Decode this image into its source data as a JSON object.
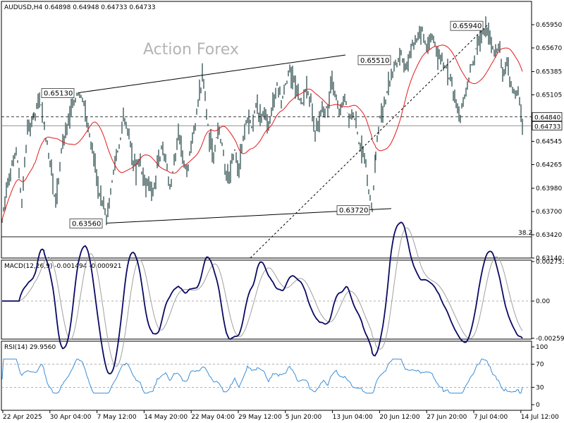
{
  "watermark": "Action Forex",
  "chart_data": [
    {
      "type": "line",
      "role": "price",
      "header": "AUDUSD,H4  0.64898 0.64948 0.64733 0.64733",
      "ylim": [
        0.6314,
        0.6623
      ],
      "y_ticks": [
        "0.65950",
        "0.65670",
        "0.65385",
        "0.65105",
        "0.64825",
        "0.64545",
        "0.64265",
        "0.63980",
        "0.63700",
        "0.63420",
        "0.63140"
      ],
      "x_ticks": [
        "22 Apr 2025",
        "30 Apr 04:00",
        "7 May 12:00",
        "14 May 20:00",
        "22 May 04:00",
        "29 May 12:00",
        "5 Jun 20:00",
        "13 Jun 04:00",
        "20 Jun 12:00",
        "27 Jun 20:00",
        "7 Jul 04:00",
        "14 Jul 12:00"
      ],
      "current_price": "0.64733",
      "reference_price": "0.64840",
      "fib_label": "38.2",
      "fib_level": 0.63395,
      "points": [
        {
          "label": "0.65130",
          "value": 0.6513
        },
        {
          "label": "0.65510",
          "value": 0.6551
        },
        {
          "label": "0.63560",
          "value": 0.6356
        },
        {
          "label": "0.63720",
          "value": 0.6372
        },
        {
          "label": "0.65940",
          "value": 0.6594
        }
      ],
      "trendlines": [
        {
          "name": "upper-channel",
          "from": [
            0.0,
            0.6513
          ],
          "to": [
            0.0,
            0.6551
          ]
        },
        {
          "name": "lower-channel",
          "from": [
            0.0,
            0.6356
          ],
          "to": [
            0.0,
            0.6372
          ]
        }
      ],
      "anchors": [
        [
          0,
          0.636
        ],
        [
          6,
          0.6395
        ],
        [
          12,
          0.642
        ],
        [
          20,
          0.644
        ],
        [
          28,
          0.6385
        ],
        [
          36,
          0.647
        ],
        [
          45,
          0.6485
        ],
        [
          53,
          0.651
        ],
        [
          60,
          0.647
        ],
        [
          68,
          0.643
        ],
        [
          76,
          0.638
        ],
        [
          84,
          0.644
        ],
        [
          92,
          0.647
        ],
        [
          100,
          0.65
        ],
        [
          108,
          0.6515
        ],
        [
          114,
          0.6505
        ],
        [
          120,
          0.648
        ],
        [
          126,
          0.645
        ],
        [
          132,
          0.643
        ],
        [
          138,
          0.639
        ],
        [
          142,
          0.638
        ],
        [
          148,
          0.6356
        ],
        [
          154,
          0.6395
        ],
        [
          160,
          0.643
        ],
        [
          166,
          0.645
        ],
        [
          172,
          0.648
        ],
        [
          178,
          0.647
        ],
        [
          184,
          0.644
        ],
        [
          190,
          0.642
        ],
        [
          196,
          0.643
        ],
        [
          202,
          0.64
        ],
        [
          208,
          0.641
        ],
        [
          214,
          0.639
        ],
        [
          220,
          0.642
        ],
        [
          226,
          0.645
        ],
        [
          232,
          0.643
        ],
        [
          238,
          0.64
        ],
        [
          244,
          0.643
        ],
        [
          250,
          0.646
        ],
        [
          256,
          0.644
        ],
        [
          262,
          0.642
        ],
        [
          268,
          0.645
        ],
        [
          274,
          0.648
        ],
        [
          280,
          0.651
        ],
        [
          284,
          0.653
        ],
        [
          288,
          0.651
        ],
        [
          294,
          0.646
        ],
        [
          300,
          0.644
        ],
        [
          306,
          0.647
        ],
        [
          312,
          0.645
        ],
        [
          318,
          0.641
        ],
        [
          324,
          0.642
        ],
        [
          330,
          0.644
        ],
        [
          336,
          0.642
        ],
        [
          342,
          0.646
        ],
        [
          348,
          0.648
        ],
        [
          354,
          0.647
        ],
        [
          360,
          0.65
        ],
        [
          366,
          0.648
        ],
        [
          372,
          0.649
        ],
        [
          378,
          0.647
        ],
        [
          384,
          0.65
        ],
        [
          390,
          0.652
        ],
        [
          396,
          0.6505
        ],
        [
          402,
          0.6525
        ],
        [
          408,
          0.654
        ],
        [
          414,
          0.653
        ],
        [
          420,
          0.651
        ],
        [
          426,
          0.65
        ],
        [
          432,
          0.652
        ],
        [
          438,
          0.65
        ],
        [
          444,
          0.647
        ],
        [
          450,
          0.648
        ],
        [
          456,
          0.65
        ],
        [
          462,
          0.649
        ],
        [
          468,
          0.653
        ],
        [
          474,
          0.651
        ],
        [
          480,
          0.649
        ],
        [
          486,
          0.651
        ],
        [
          492,
          0.648
        ],
        [
          498,
          0.649
        ],
        [
          504,
          0.646
        ],
        [
          510,
          0.644
        ],
        [
          516,
          0.643
        ],
        [
          520,
          0.639
        ],
        [
          525,
          0.6372
        ],
        [
          530,
          0.644
        ],
        [
          536,
          0.648
        ],
        [
          542,
          0.65
        ],
        [
          548,
          0.652
        ],
        [
          554,
          0.654
        ],
        [
          560,
          0.655
        ],
        [
          566,
          0.656
        ],
        [
          572,
          0.654
        ],
        [
          578,
          0.656
        ],
        [
          584,
          0.657
        ],
        [
          590,
          0.658
        ],
        [
          596,
          0.6585
        ],
        [
          602,
          0.657
        ],
        [
          608,
          0.658
        ],
        [
          614,
          0.657
        ],
        [
          620,
          0.656
        ],
        [
          626,
          0.655
        ],
        [
          632,
          0.654
        ],
        [
          638,
          0.652
        ],
        [
          644,
          0.65
        ],
        [
          650,
          0.6485
        ],
        [
          656,
          0.651
        ],
        [
          662,
          0.653
        ],
        [
          668,
          0.655
        ],
        [
          674,
          0.657
        ],
        [
          680,
          0.658
        ],
        [
          686,
          0.6594
        ],
        [
          692,
          0.658
        ],
        [
          698,
          0.656
        ],
        [
          704,
          0.657
        ],
        [
          710,
          0.654
        ],
        [
          716,
          0.655
        ],
        [
          720,
          0.653
        ],
        [
          726,
          0.651
        ],
        [
          732,
          0.652
        ],
        [
          738,
          0.6473
        ]
      ]
    },
    {
      "type": "line",
      "role": "macd",
      "header": "MACD(12,26,9) -0.001494 -0.000921",
      "y_ticks": [
        "0.002753",
        "0.00",
        "-0.002594"
      ],
      "ylim": [
        -0.00265,
        0.00285
      ]
    },
    {
      "type": "line",
      "role": "rsi",
      "header": "RSI(14) 29.9560",
      "y_ticks": [
        "100",
        "70",
        "30",
        "0"
      ],
      "ylim": [
        0,
        100
      ],
      "levels": [
        70,
        30
      ]
    }
  ],
  "colors": {
    "price": "#2f4f4f",
    "ma": "#e31a1c",
    "macd": "#0a0a64",
    "signal": "#a0a0a0",
    "rsi": "#3c8ed6",
    "grid": "#000000"
  }
}
